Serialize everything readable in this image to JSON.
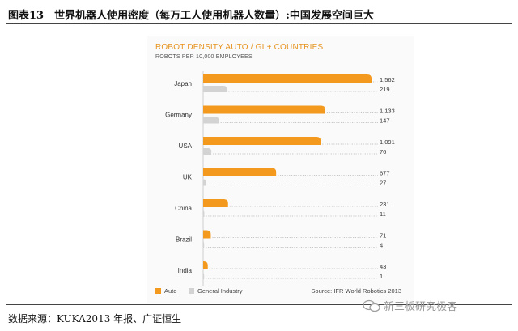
{
  "figure": {
    "title": "图表13　世界机器人使用密度（每万工人使用机器人数量）:中国发展空间巨大",
    "source_note": "数据来源：KUKA2013 年报、广证恒生",
    "watermark": "新三板研究极客"
  },
  "chart_data": {
    "type": "bar",
    "orientation": "horizontal",
    "title": "ROBOT DENSITY AUTO / GI + COUNTRIES",
    "subtitle": "ROBOTS PER 10,000 EMPLOYEES",
    "categories": [
      "Japan",
      "Germany",
      "USA",
      "UK",
      "China",
      "Brazil",
      "India"
    ],
    "series": [
      {
        "name": "Auto",
        "color": "#f39a1e",
        "values": [
          1562,
          1133,
          1091,
          677,
          231,
          71,
          43
        ],
        "labels": [
          "1,562",
          "1,133",
          "1,091",
          "677",
          "231",
          "71",
          "43"
        ]
      },
      {
        "name": "General Industry",
        "color": "#d3d3d3",
        "values": [
          219,
          147,
          76,
          27,
          11,
          4,
          1
        ],
        "labels": [
          "219",
          "147",
          "76",
          "27",
          "11",
          "4",
          "1"
        ]
      }
    ],
    "xlim": [
      0,
      1562
    ],
    "grid": false,
    "legend_position": "bottom-left",
    "source": "Source: IFR World Robotics 2013"
  }
}
